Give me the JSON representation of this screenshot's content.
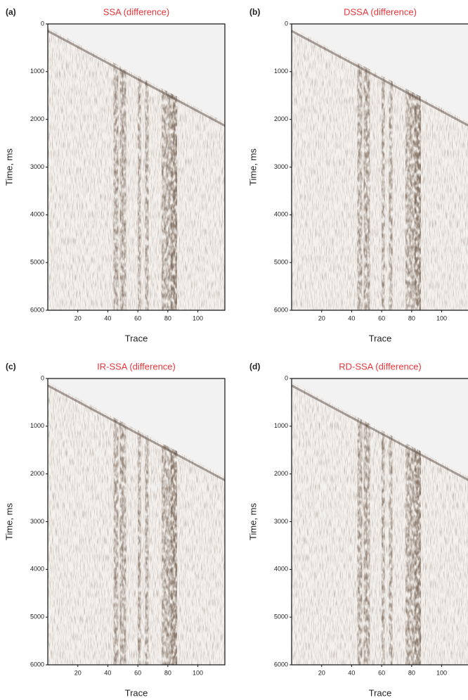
{
  "chart_data": [
    {
      "type": "seismic",
      "label": "(a)",
      "title": "SSA (difference)",
      "xlabel": "Trace",
      "ylabel": "Time, ms",
      "xlim": [
        0,
        118
      ],
      "ylim": [
        6000,
        0
      ],
      "xticks": [
        20,
        40,
        60,
        80,
        100
      ],
      "yticks": [
        0,
        1000,
        2000,
        3000,
        4000,
        5000,
        6000
      ]
    },
    {
      "type": "seismic",
      "label": "(b)",
      "title": "DSSA (difference)",
      "xlabel": "Trace",
      "ylabel": "Time, ms",
      "xlim": [
        0,
        118
      ],
      "ylim": [
        6000,
        0
      ],
      "xticks": [
        20,
        40,
        60,
        80,
        100
      ],
      "yticks": [
        0,
        1000,
        2000,
        3000,
        4000,
        5000,
        6000
      ]
    },
    {
      "type": "seismic",
      "label": "(c)",
      "title": "IR-SSA (difference)",
      "xlabel": "Trace",
      "ylabel": "Time, ms",
      "xlim": [
        0,
        118
      ],
      "ylim": [
        6000,
        0
      ],
      "xticks": [
        20,
        40,
        60,
        80,
        100
      ],
      "yticks": [
        0,
        1000,
        2000,
        3000,
        4000,
        5000,
        6000
      ]
    },
    {
      "type": "seismic",
      "label": "(d)",
      "title": "RD-SSA (difference)",
      "xlabel": "Trace",
      "ylabel": "Time, ms",
      "xlim": [
        0,
        118
      ],
      "ylim": [
        6000,
        0
      ],
      "xticks": [
        20,
        40,
        60,
        80,
        100
      ],
      "yticks": [
        0,
        1000,
        2000,
        3000,
        4000,
        5000,
        6000
      ]
    }
  ]
}
